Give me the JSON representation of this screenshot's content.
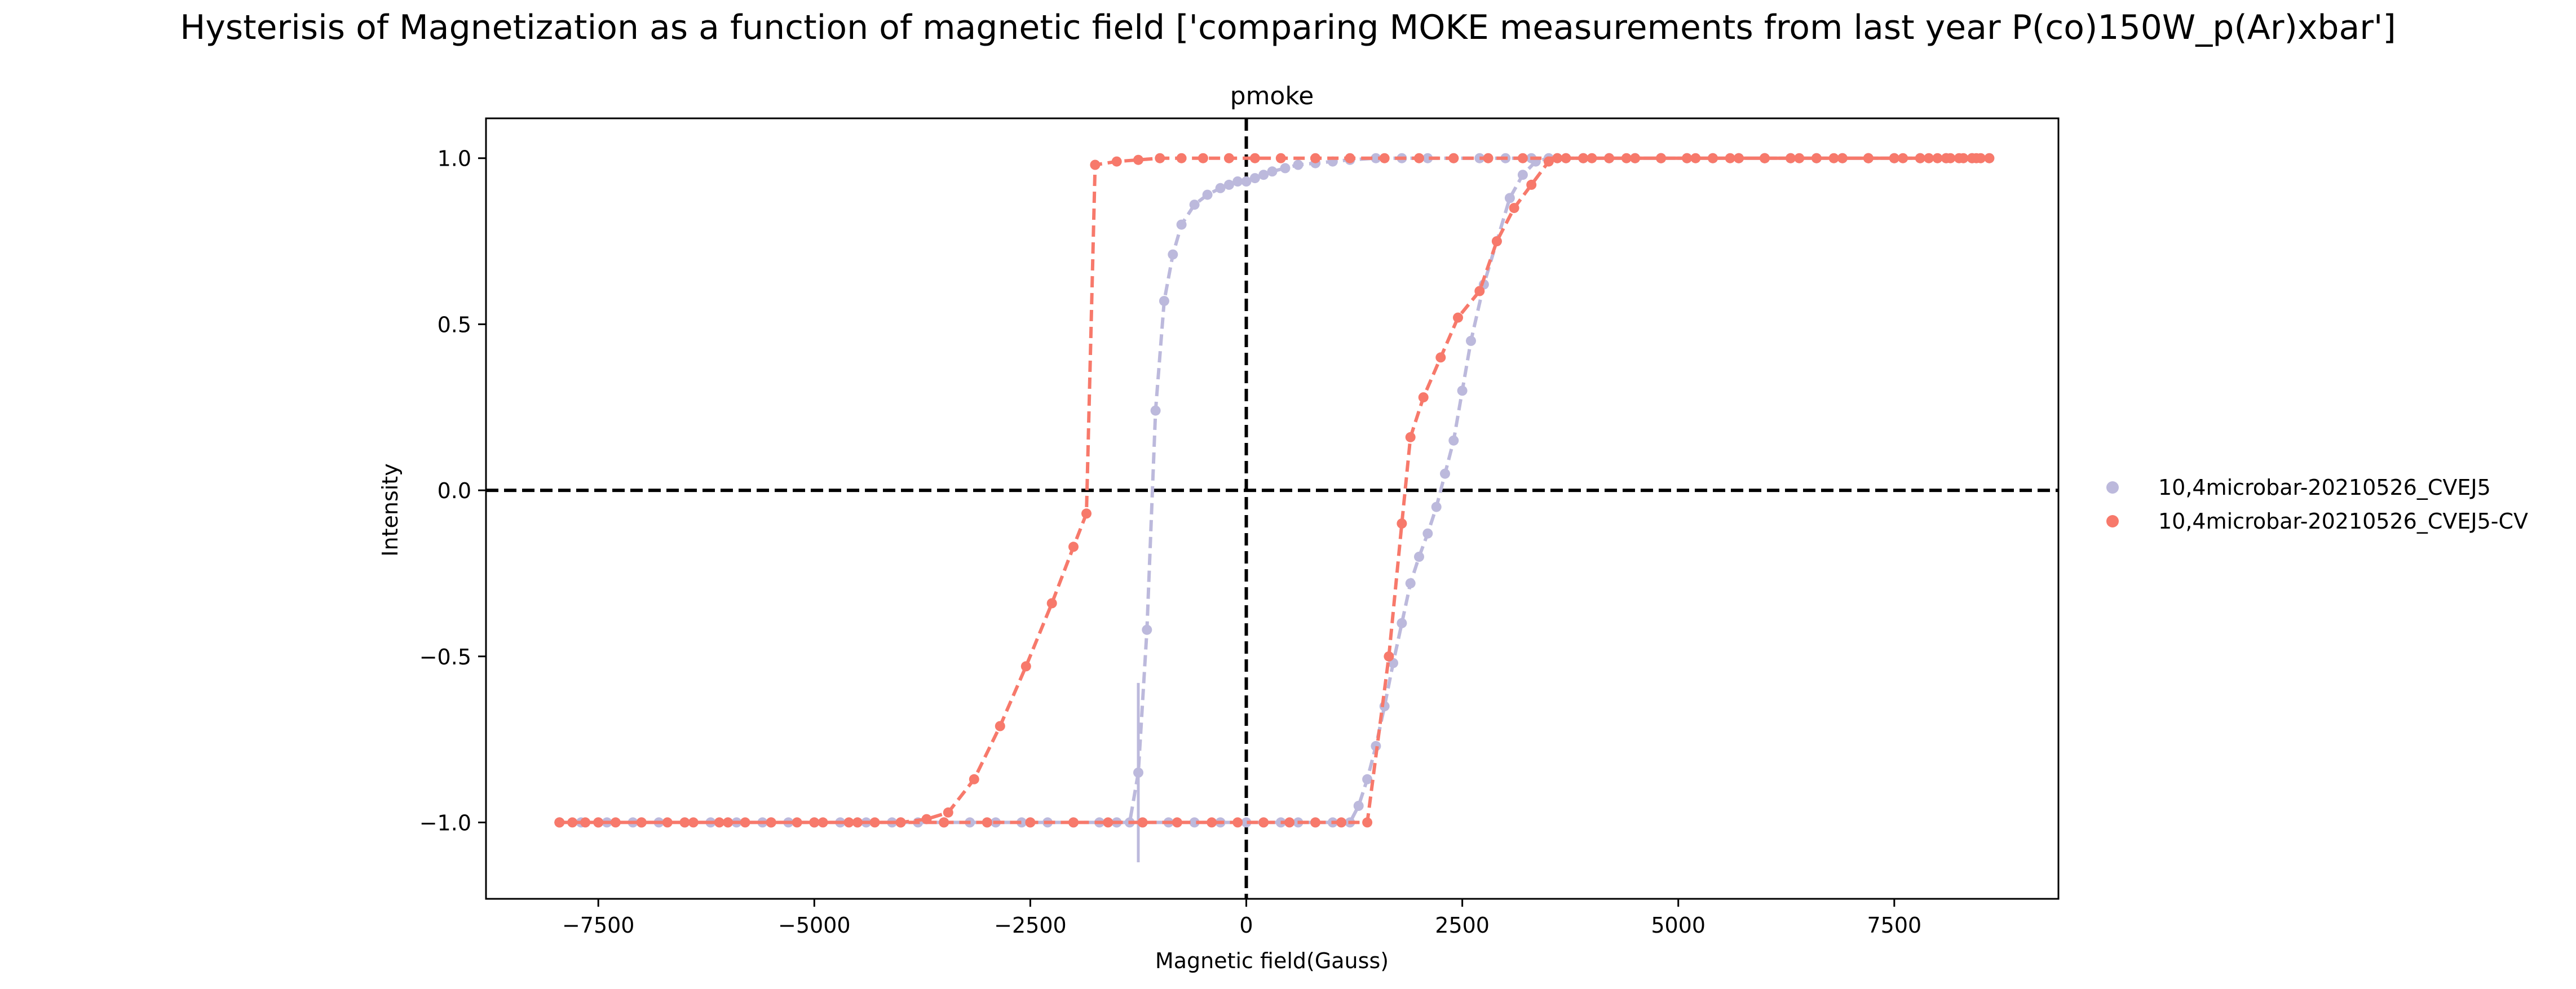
{
  "chart_data": {
    "type": "line",
    "title": "Hysterisis of Magnetization as a function of magnetic field ['comparing MOKE measurements from last year P(co)150W_p(Ar)xbar']",
    "subtitle": "pmoke",
    "xlabel": "Magnetic field(Gauss)",
    "ylabel": "Intensity",
    "xlim": [
      -8800,
      9400
    ],
    "ylim": [
      -1.23,
      1.12
    ],
    "xticks": [
      -7500,
      -5000,
      -2500,
      0,
      2500,
      5000,
      7500
    ],
    "xtick_labels": [
      "−7500",
      "−5000",
      "−2500",
      "0",
      "2500",
      "5000",
      "7500"
    ],
    "yticks": [
      -1.0,
      -0.5,
      0.0,
      0.5,
      1.0
    ],
    "ytick_labels": [
      "−1.0",
      "−0.5",
      "0.0",
      "0.5",
      "1.0"
    ],
    "grid": false,
    "legend_position": "right-outside",
    "reference_lines": {
      "x": 0,
      "y": 0
    },
    "series": [
      {
        "name": "10,4microbar-20210526_CVEJ5",
        "color": "#bcb9dc",
        "x": [
          -7950,
          -7700,
          -7400,
          -7100,
          -6800,
          -6500,
          -6200,
          -5900,
          -5600,
          -5300,
          -5000,
          -4700,
          -4400,
          -4100,
          -3800,
          -3500,
          -3200,
          -2900,
          -2600,
          -2300,
          -2000,
          -1700,
          -1500,
          -1350,
          -1250,
          -1150,
          -1050,
          -950,
          -850,
          -750,
          -600,
          -450,
          -300,
          -200,
          -100,
          0,
          100,
          200,
          300,
          450,
          600,
          800,
          1000,
          1200,
          1500,
          1800,
          2100,
          2400,
          2700,
          3000,
          3300,
          3600,
          3900,
          4200,
          4500,
          4800,
          5100,
          5400,
          5700,
          6000,
          6300,
          6600,
          6900,
          7200,
          7500,
          7800,
          8100,
          8400,
          8600,
          8400,
          8100,
          7800,
          7500,
          7200,
          6900,
          6600,
          6300,
          6000,
          5700,
          5400,
          5100,
          4800,
          4500,
          4200,
          3900,
          3700,
          3500,
          3350,
          3200,
          3050,
          2900,
          2750,
          2600,
          2500,
          2400,
          2300,
          2200,
          2100,
          2000,
          1900,
          1800,
          1700,
          1600,
          1500,
          1400,
          1300,
          1200,
          1000,
          800,
          600,
          400,
          200,
          0,
          -300,
          -600,
          -900,
          -1200,
          -1500,
          -2000,
          -2500,
          -3000,
          -3500,
          -4000,
          -4500,
          -5000,
          -5500,
          -6000,
          -6500,
          -7000,
          -7500,
          -7950
        ],
        "y": [
          -1.0,
          -1.0,
          -1.0,
          -1.0,
          -1.0,
          -1.0,
          -1.0,
          -1.0,
          -1.0,
          -1.0,
          -1.0,
          -1.0,
          -1.0,
          -1.0,
          -1.0,
          -1.0,
          -1.0,
          -1.0,
          -1.0,
          -1.0,
          -1.0,
          -1.0,
          -1.0,
          -1.0,
          -0.85,
          -0.42,
          0.24,
          0.57,
          0.71,
          0.8,
          0.86,
          0.89,
          0.91,
          0.92,
          0.93,
          0.93,
          0.94,
          0.95,
          0.96,
          0.97,
          0.98,
          0.985,
          0.99,
          0.995,
          1.0,
          1.0,
          1.0,
          1.0,
          1.0,
          1.0,
          1.0,
          1.0,
          1.0,
          1.0,
          1.0,
          1.0,
          1.0,
          1.0,
          1.0,
          1.0,
          1.0,
          1.0,
          1.0,
          1.0,
          1.0,
          1.0,
          1.0,
          1.0,
          1.0,
          1.0,
          1.0,
          1.0,
          1.0,
          1.0,
          1.0,
          1.0,
          1.0,
          1.0,
          1.0,
          1.0,
          1.0,
          1.0,
          1.0,
          1.0,
          1.0,
          1.0,
          1.0,
          0.99,
          0.95,
          0.88,
          0.75,
          0.62,
          0.45,
          0.3,
          0.15,
          0.05,
          -0.05,
          -0.13,
          -0.2,
          -0.28,
          -0.4,
          -0.52,
          -0.65,
          -0.77,
          -0.87,
          -0.95,
          -1.0,
          -1.0,
          -1.0,
          -1.0,
          -1.0,
          -1.0,
          -1.0,
          -1.0,
          -1.0,
          -1.0,
          -1.0,
          -1.0,
          -1.0,
          -1.0,
          -1.0,
          -1.0,
          -1.0,
          -1.0,
          -1.0,
          -1.0,
          -1.0,
          -1.0,
          -1.0,
          -1.0,
          -1.0
        ],
        "error_bar": {
          "x": -1250,
          "y": -0.85,
          "err": 0.27
        }
      },
      {
        "name": "10,4microbar-20210526_CVEJ5-CV",
        "color": "#f7796b",
        "x": [
          -7950,
          -7800,
          -7650,
          -7500,
          -7300,
          -7000,
          -6700,
          -6400,
          -6100,
          -5800,
          -5500,
          -5200,
          -4900,
          -4600,
          -4300,
          -4000,
          -3700,
          -3450,
          -3150,
          -2850,
          -2550,
          -2250,
          -2000,
          -1850,
          -1750,
          -1500,
          -1250,
          -1000,
          -750,
          -500,
          -200,
          100,
          400,
          800,
          1200,
          1600,
          2000,
          2400,
          2800,
          3200,
          3600,
          4000,
          4400,
          4800,
          5200,
          5600,
          6000,
          6400,
          6800,
          7200,
          7600,
          7900,
          8100,
          8250,
          8400,
          8500,
          8600,
          8450,
          8300,
          8150,
          8000,
          7800,
          7500,
          7200,
          6900,
          6600,
          6300,
          6000,
          5700,
          5400,
          5100,
          4800,
          4500,
          4200,
          3900,
          3700,
          3500,
          3300,
          3100,
          2900,
          2700,
          2450,
          2250,
          2050,
          1900,
          1800,
          1650,
          1400,
          1100,
          800,
          500,
          200,
          -100,
          -400,
          -800,
          -1200,
          -1600,
          -2000,
          -2500,
          -3000,
          -3500,
          -4000,
          -4500,
          -5000,
          -5500,
          -6000,
          -6500,
          -7000,
          -7500,
          -7950
        ],
        "y": [
          -1.0,
          -1.0,
          -1.0,
          -1.0,
          -1.0,
          -1.0,
          -1.0,
          -1.0,
          -1.0,
          -1.0,
          -1.0,
          -1.0,
          -1.0,
          -1.0,
          -1.0,
          -1.0,
          -0.99,
          -0.97,
          -0.87,
          -0.71,
          -0.53,
          -0.34,
          -0.17,
          -0.07,
          0.98,
          0.99,
          0.995,
          1.0,
          1.0,
          1.0,
          1.0,
          1.0,
          1.0,
          1.0,
          1.0,
          1.0,
          1.0,
          1.0,
          1.0,
          1.0,
          1.0,
          1.0,
          1.0,
          1.0,
          1.0,
          1.0,
          1.0,
          1.0,
          1.0,
          1.0,
          1.0,
          1.0,
          1.0,
          1.0,
          1.0,
          1.0,
          1.0,
          1.0,
          1.0,
          1.0,
          1.0,
          1.0,
          1.0,
          1.0,
          1.0,
          1.0,
          1.0,
          1.0,
          1.0,
          1.0,
          1.0,
          1.0,
          1.0,
          1.0,
          1.0,
          1.0,
          0.99,
          0.92,
          0.85,
          0.75,
          0.6,
          0.52,
          0.4,
          0.28,
          0.16,
          -0.1,
          -0.5,
          -1.0,
          -1.0,
          -1.0,
          -1.0,
          -1.0,
          -1.0,
          -1.0,
          -1.0,
          -1.0,
          -1.0,
          -1.0,
          -1.0,
          -1.0,
          -1.0,
          -1.0,
          -1.0,
          -1.0,
          -1.0,
          -1.0,
          -1.0,
          -1.0,
          -1.0,
          -1.0
        ]
      }
    ]
  }
}
